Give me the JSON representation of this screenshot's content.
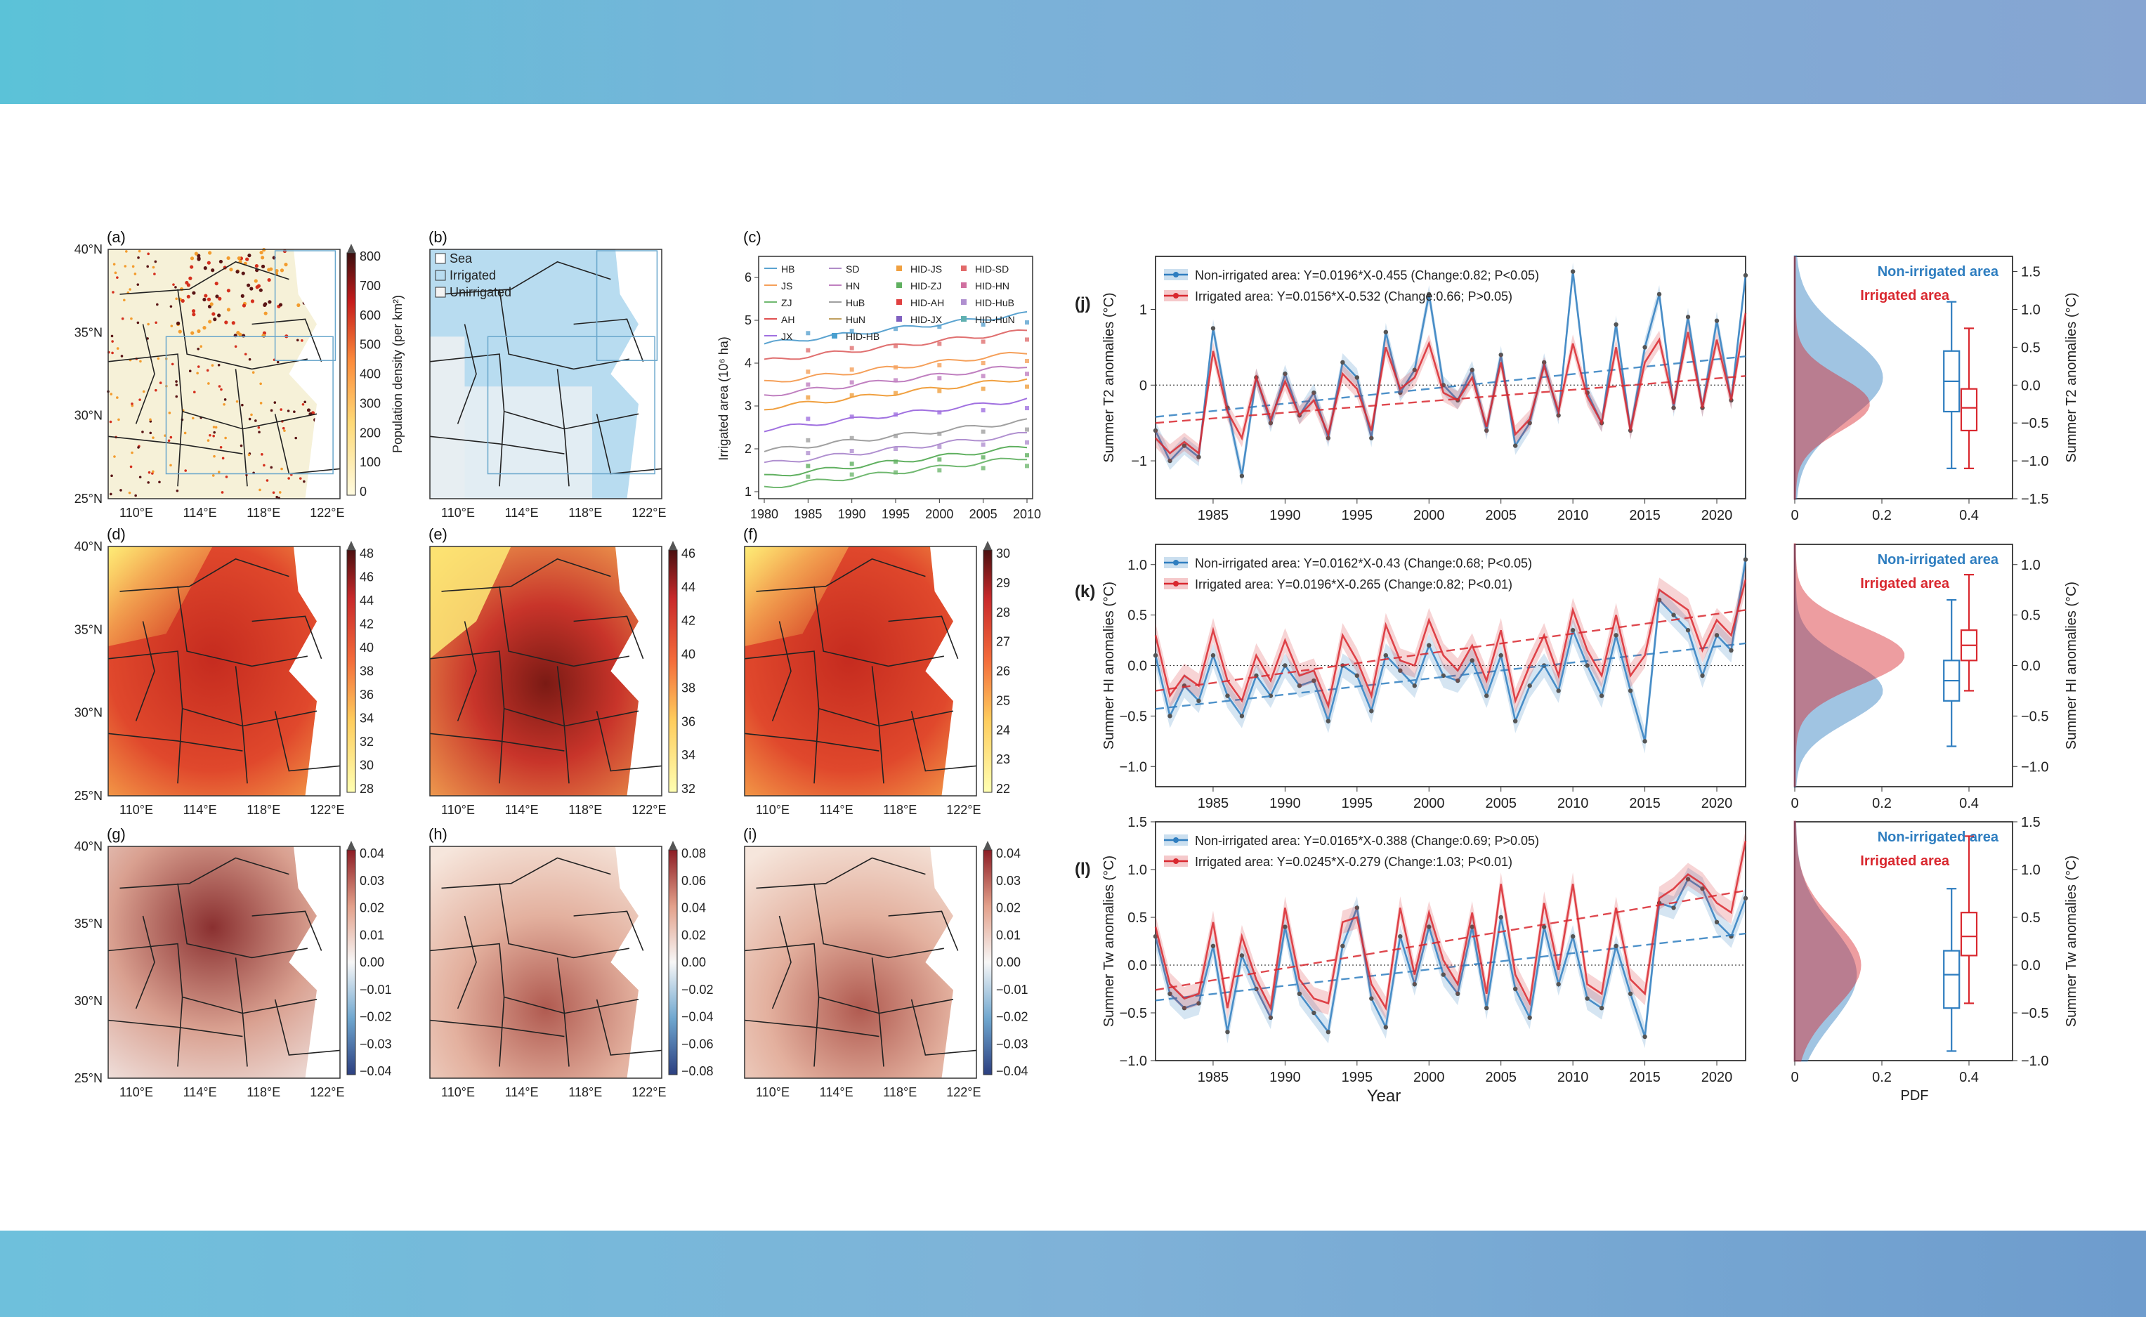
{
  "colors": {
    "blue": "#2f7ec0",
    "red": "#d9282f",
    "zero": "#444444"
  },
  "maps": {
    "labels": [
      "(a)",
      "(b)",
      "(c)",
      "(d)",
      "(e)",
      "(f)",
      "(g)",
      "(h)",
      "(i)"
    ],
    "lat_ticks": [
      "40°N",
      "35°N",
      "30°N",
      "25°N"
    ],
    "lon_ticks": [
      "110°E",
      "114°E",
      "118°E",
      "122°E"
    ],
    "cbar_a": {
      "ticks": [
        "800",
        "700",
        "600",
        "500",
        "400",
        "300",
        "200",
        "100",
        "0"
      ],
      "label": "Population density (per km²)"
    },
    "legend_b": [
      "Sea",
      "Irrigated",
      "Unirrigated"
    ],
    "cbar_d": [
      "48",
      "46",
      "44",
      "42",
      "40",
      "38",
      "36",
      "34",
      "32",
      "30",
      "28"
    ],
    "cbar_e": [
      "46",
      "44",
      "42",
      "40",
      "38",
      "36",
      "34",
      "32"
    ],
    "cbar_f": [
      "30",
      "29",
      "28",
      "27",
      "26",
      "25",
      "24",
      "23",
      "22"
    ],
    "cbar_g": [
      "0.04",
      "0.03",
      "0.02",
      "0.01",
      "0.00",
      "−0.01",
      "−0.02",
      "−0.03",
      "−0.04"
    ],
    "cbar_h": [
      "0.08",
      "0.06",
      "0.04",
      "0.02",
      "0.00",
      "−0.02",
      "−0.04",
      "−0.06",
      "−0.08"
    ],
    "cbar_i": [
      "0.04",
      "0.03",
      "0.02",
      "0.01",
      "0.00",
      "−0.01",
      "−0.02",
      "−0.03",
      "−0.04"
    ]
  },
  "panel_c": {
    "ylabel": "Irrigated area (10⁶ ha)",
    "yticks": [
      "6",
      "5",
      "4",
      "3",
      "2",
      "1"
    ],
    "xticks": [
      "1980",
      "1985",
      "1990",
      "1995",
      "2000",
      "2005",
      "2010"
    ],
    "legend": [
      "HB",
      "SD",
      "HID-JS",
      "HID-SD",
      "JS",
      "HN",
      "HID-ZJ",
      "HID-HN",
      "ZJ",
      "HuB",
      "HID-AH",
      "HID-HuB",
      "AH",
      "HuN",
      "HID-JX",
      "HID-HuN",
      "JX",
      "HID-HB"
    ],
    "legend_colors": [
      "#5ba3d0",
      "#b08cc8",
      "#f0a040",
      "#e26a6a",
      "#f5a05a",
      "#c080c0",
      "#60b060",
      "#d070a0",
      "#70b870",
      "#a0a0a0",
      "#e04040",
      "#b090d0",
      "#e05050",
      "#c0a060",
      "#8060c0",
      "#60b0b0",
      "#a070e0",
      "#4aa0d0"
    ]
  },
  "chart_data": [
    {
      "type": "line",
      "panel": "(j)",
      "ylabel": "Summer T2 anomalies (°C)",
      "ylim": [
        -1.5,
        1.7
      ],
      "yticks": [
        "1",
        "0",
        "−1"
      ],
      "x": [
        1981,
        1982,
        1983,
        1984,
        1985,
        1986,
        1987,
        1988,
        1989,
        1990,
        1991,
        1992,
        1993,
        1994,
        1995,
        1996,
        1997,
        1998,
        1999,
        2000,
        2001,
        2002,
        2003,
        2004,
        2005,
        2006,
        2007,
        2008,
        2009,
        2010,
        2011,
        2012,
        2013,
        2014,
        2015,
        2016,
        2017,
        2018,
        2019,
        2020,
        2021,
        2022
      ],
      "series": [
        {
          "name": "Non-irrigated area: Y=0.0196*X-0.455 (Change:0.82; P<0.05)",
          "values": [
            -0.6,
            -1.0,
            -0.8,
            -0.95,
            0.75,
            -0.3,
            -1.2,
            0.1,
            -0.5,
            0.15,
            -0.4,
            -0.1,
            -0.7,
            0.3,
            0.1,
            -0.7,
            0.7,
            -0.1,
            0.2,
            1.2,
            0.0,
            -0.2,
            0.2,
            -0.6,
            0.4,
            -0.8,
            -0.5,
            0.3,
            -0.4,
            1.5,
            -0.1,
            -0.5,
            0.8,
            -0.6,
            0.5,
            1.2,
            -0.3,
            0.9,
            -0.3,
            0.85,
            -0.2,
            1.45
          ],
          "fit": [
            -0.42,
            0.38
          ]
        },
        {
          "name": "Irrigated area: Y=0.0156*X-0.532 (Change:0.66; P>0.05)",
          "values": [
            -0.7,
            -0.9,
            -0.75,
            -0.9,
            0.45,
            -0.35,
            -0.7,
            0.1,
            -0.45,
            0.05,
            -0.4,
            -0.2,
            -0.65,
            0.15,
            -0.05,
            -0.6,
            0.5,
            -0.05,
            0.1,
            0.55,
            -0.1,
            -0.2,
            0.1,
            -0.55,
            0.3,
            -0.65,
            -0.45,
            0.25,
            -0.35,
            0.55,
            -0.15,
            -0.5,
            0.5,
            -0.6,
            0.3,
            0.6,
            -0.25,
            0.7,
            -0.3,
            0.6,
            -0.2,
            0.95
          ],
          "fit": [
            -0.5,
            0.12
          ]
        }
      ],
      "xticks": [
        "1985",
        "1990",
        "1995",
        "2000",
        "2005",
        "2010",
        "2015",
        "2020"
      ],
      "pdf": {
        "xticks": [
          "0",
          "0.2",
          "0.4"
        ],
        "yticks": [
          "1.5",
          "1.0",
          "0.5",
          "0.0",
          "−0.5",
          "−1.0",
          "−1.5"
        ],
        "ylabel": "Summer T2 anomalies (°C)",
        "legend": [
          "Non-irrigated area",
          "Irrigated area"
        ]
      }
    },
    {
      "type": "line",
      "panel": "(k)",
      "ylabel": "Summer HI anomalies (°C)",
      "ylim": [
        -1.2,
        1.2
      ],
      "yticks": [
        "1.0",
        "0.5",
        "0.0",
        "−0.5",
        "−1.0"
      ],
      "x": [
        1981,
        1982,
        1983,
        1984,
        1985,
        1986,
        1987,
        1988,
        1989,
        1990,
        1991,
        1992,
        1993,
        1994,
        1995,
        1996,
        1997,
        1998,
        1999,
        2000,
        2001,
        2002,
        2003,
        2004,
        2005,
        2006,
        2007,
        2008,
        2009,
        2010,
        2011,
        2012,
        2013,
        2014,
        2015,
        2016,
        2017,
        2018,
        2019,
        2020,
        2021,
        2022
      ],
      "series": [
        {
          "name": "Non-irrigated area: Y=0.0162*X-0.43 (Change:0.68; P<0.05)",
          "values": [
            0.1,
            -0.5,
            -0.2,
            -0.35,
            0.1,
            -0.3,
            -0.5,
            -0.1,
            -0.3,
            0.0,
            -0.2,
            -0.15,
            -0.55,
            0.0,
            -0.1,
            -0.45,
            0.1,
            -0.05,
            -0.2,
            0.2,
            -0.1,
            -0.15,
            0.05,
            -0.3,
            0.1,
            -0.55,
            -0.2,
            0.0,
            -0.25,
            0.35,
            0.0,
            -0.3,
            0.3,
            -0.25,
            -0.75,
            0.65,
            0.5,
            0.35,
            -0.1,
            0.3,
            0.15,
            1.05
          ],
          "fit": [
            -0.43,
            0.22
          ]
        },
        {
          "name": "Irrigated area: Y=0.0196*X-0.265 (Change:0.82; P<0.01)",
          "values": [
            0.3,
            -0.3,
            -0.1,
            -0.2,
            0.35,
            -0.15,
            -0.35,
            0.1,
            -0.15,
            0.25,
            -0.1,
            -0.05,
            -0.4,
            0.3,
            0.05,
            -0.3,
            0.4,
            0.05,
            0.0,
            0.45,
            0.1,
            -0.05,
            0.2,
            -0.15,
            0.35,
            -0.35,
            0.0,
            0.3,
            -0.1,
            0.55,
            0.15,
            -0.1,
            0.5,
            -0.1,
            0.1,
            0.75,
            0.65,
            0.55,
            0.15,
            0.45,
            0.3,
            0.85
          ],
          "fit": [
            -0.25,
            0.55
          ]
        }
      ],
      "xticks": [
        "1985",
        "1990",
        "1995",
        "2000",
        "2005",
        "2010",
        "2015",
        "2020"
      ],
      "pdf": {
        "xticks": [
          "0",
          "0.2",
          "0.4"
        ],
        "yticks": [
          "1.0",
          "0.5",
          "0.0",
          "−0.5",
          "−1.0"
        ],
        "ylabel": "Summer HI anomalies (°C)",
        "legend": [
          "Non-irrigated area",
          "Irrigated area"
        ]
      }
    },
    {
      "type": "line",
      "panel": "(l)",
      "ylabel": "Summer Tw anomalies (°C)",
      "xlabel": "Year",
      "ylim": [
        -1.0,
        1.5
      ],
      "yticks": [
        "1.5",
        "1.0",
        "0.5",
        "0.0",
        "−0.5",
        "−1.0"
      ],
      "x": [
        1981,
        1982,
        1983,
        1984,
        1985,
        1986,
        1987,
        1988,
        1989,
        1990,
        1991,
        1992,
        1993,
        1994,
        1995,
        1996,
        1997,
        1998,
        1999,
        2000,
        2001,
        2002,
        2003,
        2004,
        2005,
        2006,
        2007,
        2008,
        2009,
        2010,
        2011,
        2012,
        2013,
        2014,
        2015,
        2016,
        2017,
        2018,
        2019,
        2020,
        2021,
        2022
      ],
      "series": [
        {
          "name": "Non-irrigated area: Y=0.0165*X-0.388 (Change:0.69; P>0.05)",
          "values": [
            0.3,
            -0.3,
            -0.45,
            -0.4,
            0.2,
            -0.7,
            0.1,
            -0.25,
            -0.55,
            0.4,
            -0.3,
            -0.5,
            -0.7,
            0.2,
            0.6,
            -0.35,
            -0.65,
            0.3,
            -0.2,
            0.4,
            -0.1,
            -0.3,
            0.4,
            -0.45,
            0.5,
            -0.25,
            -0.55,
            0.4,
            -0.2,
            0.3,
            -0.35,
            -0.45,
            0.2,
            -0.3,
            -0.75,
            0.65,
            0.6,
            0.9,
            0.8,
            0.45,
            0.3,
            0.7
          ],
          "fit": [
            -0.37,
            0.33
          ]
        },
        {
          "name": "Irrigated area: Y=0.0245*X-0.279 (Change:1.03; P<0.01)",
          "values": [
            0.4,
            -0.2,
            -0.35,
            -0.3,
            0.45,
            -0.45,
            0.3,
            -0.15,
            -0.45,
            0.6,
            -0.15,
            -0.35,
            -0.4,
            0.45,
            0.5,
            -0.2,
            -0.45,
            0.6,
            -0.1,
            0.55,
            0.05,
            -0.2,
            0.55,
            -0.3,
            0.85,
            -0.1,
            -0.4,
            0.65,
            -0.05,
            0.85,
            -0.2,
            -0.3,
            0.6,
            -0.15,
            -0.3,
            0.7,
            0.8,
            0.95,
            0.85,
            0.65,
            0.55,
            1.3
          ],
          "fit": [
            -0.26,
            0.78
          ]
        }
      ],
      "xticks": [
        "1985",
        "1990",
        "1995",
        "2000",
        "2005",
        "2010",
        "2015",
        "2020"
      ],
      "pdf": {
        "xticks": [
          "0",
          "0.2",
          "0.4"
        ],
        "yticks": [
          "1.5",
          "1.0",
          "0.5",
          "0.0",
          "−0.5",
          "−1.0"
        ],
        "ylabel": "Summer Tw anomalies (°C)",
        "xlabel": "PDF",
        "legend": [
          "Non-irrigated area",
          "Irrigated area"
        ]
      }
    }
  ]
}
